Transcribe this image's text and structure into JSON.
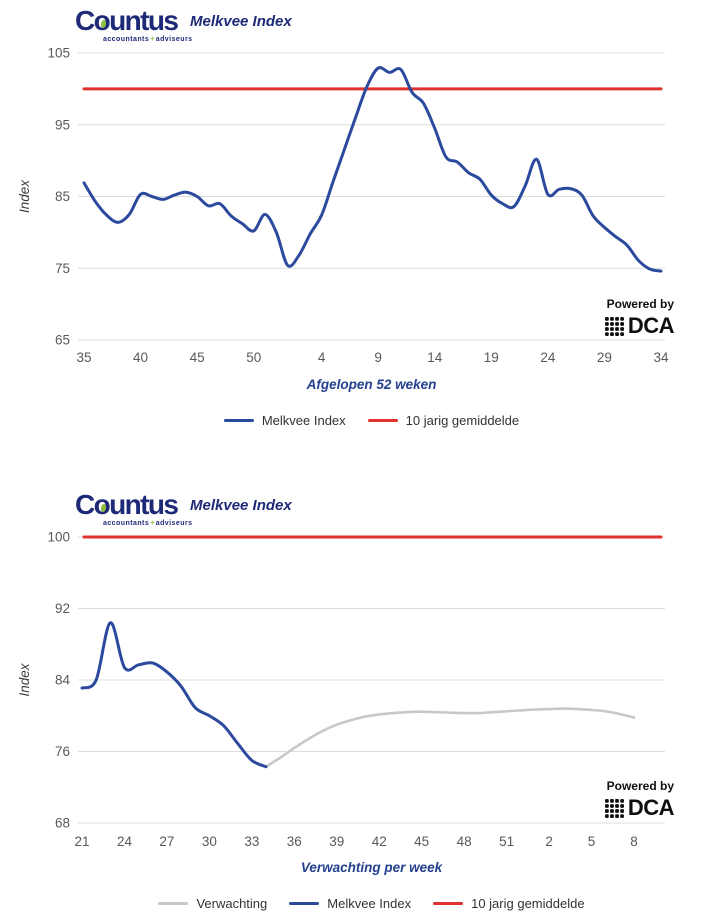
{
  "brand": {
    "name": "Countus",
    "tagline": {
      "left": "accountants",
      "sep": "+",
      "right": "adviseurs"
    }
  },
  "powered_by": {
    "label": "Powered by",
    "brand": "DCA"
  },
  "colors": {
    "navy": "#1E2A78",
    "blue_line": "#2B4A9E",
    "red_line": "#E03131",
    "gray_line": "#C8C8C8",
    "green_accent": "#8CBE3F",
    "gridline": "#DCDCDC",
    "tick_text": "#58595B"
  },
  "chart_data": [
    {
      "type": "line",
      "title": "Melkvee Index",
      "xlabel": "Afgelopen 52 weken",
      "ylabel": "Index",
      "ylim": [
        65,
        107
      ],
      "y_ticks": [
        105,
        95,
        85,
        75,
        65
      ],
      "grid": "horizontal",
      "legend_position": "bottom",
      "x_ticks": {
        "labels": [
          "35",
          "40",
          "45",
          "50",
          "4",
          "9",
          "14",
          "19",
          "24",
          "29",
          "34"
        ],
        "indices": [
          0,
          5,
          10,
          15,
          21,
          26,
          31,
          36,
          41,
          46,
          51
        ]
      },
      "weeks": [
        35,
        36,
        37,
        38,
        39,
        40,
        41,
        42,
        43,
        44,
        45,
        46,
        47,
        48,
        49,
        50,
        51,
        52,
        1,
        2,
        3,
        4,
        5,
        6,
        7,
        8,
        9,
        10,
        11,
        12,
        13,
        14,
        15,
        16,
        17,
        18,
        19,
        20,
        21,
        22,
        23,
        24,
        25,
        26,
        27,
        28,
        29,
        30,
        31,
        32,
        33,
        34
      ],
      "series": [
        {
          "name": "Melkvee Index",
          "color": "#2B4A9E",
          "start_index": 0,
          "values": [
            86.9,
            84.3,
            82.4,
            81.4,
            82.5,
            85.3,
            85.0,
            84.6,
            85.2,
            85.6,
            85.0,
            83.7,
            84.0,
            82.3,
            81.2,
            80.2,
            82.5,
            80.0,
            75.4,
            76.8,
            79.8,
            82.4,
            87.0,
            91.5,
            96.0,
            100.3,
            102.9,
            102.3,
            102.7,
            99.5,
            98.0,
            94.5,
            90.5,
            89.8,
            88.3,
            87.4,
            85.2,
            84.0,
            83.6,
            86.5,
            90.2,
            85.3,
            86.0,
            86.1,
            85.2,
            82.3,
            80.7,
            79.4,
            78.2,
            76.1,
            74.9,
            74.6
          ]
        },
        {
          "name": "10 jarig gemiddelde",
          "color": "#E03131",
          "constant": 100
        }
      ]
    },
    {
      "type": "line",
      "title": "Melkvee Index",
      "xlabel": "Verwachting per week",
      "ylabel": "Index",
      "ylim": [
        68,
        102
      ],
      "y_ticks": [
        100,
        92,
        84,
        76,
        68
      ],
      "grid": "horizontal",
      "legend_position": "bottom",
      "x_ticks": {
        "labels": [
          "21",
          "24",
          "27",
          "30",
          "33",
          "36",
          "39",
          "42",
          "45",
          "48",
          "51",
          "2",
          "5",
          "8"
        ],
        "indices": [
          0,
          3,
          6,
          9,
          12,
          15,
          18,
          21,
          24,
          27,
          30,
          33,
          36,
          39
        ]
      },
      "weeks": [
        21,
        22,
        23,
        24,
        25,
        26,
        27,
        28,
        29,
        30,
        31,
        32,
        33,
        34,
        35,
        36,
        37,
        38,
        39,
        40,
        41,
        42,
        43,
        44,
        45,
        46,
        47,
        48,
        49,
        50,
        51,
        52,
        1,
        2,
        3,
        4,
        5,
        6,
        7,
        8
      ],
      "series": [
        {
          "name": "Verwachting",
          "color": "#C8C8C8",
          "start_index": 13,
          "values": [
            74.3,
            75.3,
            76.4,
            77.4,
            78.3,
            79.0,
            79.5,
            79.9,
            80.15,
            80.3,
            80.4,
            80.45,
            80.4,
            80.35,
            80.3,
            80.3,
            80.4,
            80.5,
            80.6,
            80.7,
            80.75,
            80.8,
            80.75,
            80.65,
            80.5,
            80.2,
            79.8
          ]
        },
        {
          "name": "Melkvee Index",
          "color": "#2B4A9E",
          "start_index": 0,
          "values": [
            83.1,
            84.0,
            90.4,
            85.4,
            85.7,
            85.9,
            84.9,
            83.3,
            80.9,
            80.0,
            78.9,
            76.9,
            75.0,
            74.3
          ]
        },
        {
          "name": "10 jarig gemiddelde",
          "color": "#E03131",
          "constant": 100
        }
      ]
    }
  ]
}
